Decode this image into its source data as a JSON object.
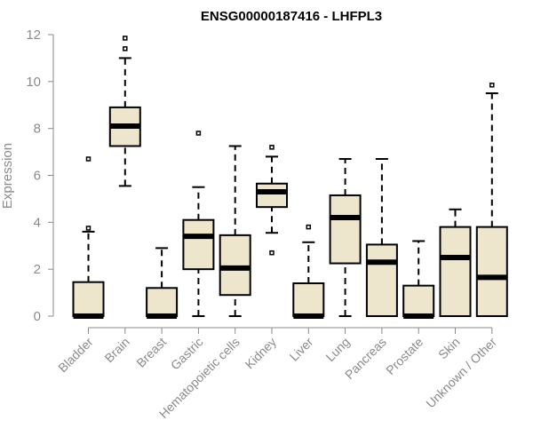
{
  "colors": {
    "box_fill": "#ede6cc",
    "box_stroke": "#000000",
    "axis": "#8a8a8a",
    "tick_text": "#8a8a8a",
    "title": "#000000"
  },
  "chart_data": {
    "type": "boxplot",
    "title": "ENSG00000187416 - LHFPL3",
    "xlabel": "",
    "ylabel": "Expression",
    "ylim": [
      0,
      12
    ],
    "yticks": [
      0,
      2,
      4,
      6,
      8,
      10,
      12
    ],
    "grid": false,
    "categories": [
      "Bladder",
      "Brain",
      "Breast",
      "Gastric",
      "Hematopoietic cells",
      "Kidney",
      "Liver",
      "Lung",
      "Pancreas",
      "Prostate",
      "Skin",
      "Unknown / Other"
    ],
    "boxes": [
      {
        "name": "Bladder",
        "whisker_low": 0,
        "q1": 0,
        "median": 0,
        "q3": 1.45,
        "whisker_high": 3.6,
        "outliers": [
          3.75,
          6.7
        ]
      },
      {
        "name": "Brain",
        "whisker_low": 5.55,
        "q1": 7.25,
        "median": 8.1,
        "q3": 8.9,
        "whisker_high": 11.0,
        "outliers": [
          11.4,
          11.85
        ]
      },
      {
        "name": "Breast",
        "whisker_low": 0,
        "q1": 0,
        "median": 0,
        "q3": 1.2,
        "whisker_high": 2.9,
        "outliers": []
      },
      {
        "name": "Gastric",
        "whisker_low": 0,
        "q1": 2.0,
        "median": 3.4,
        "q3": 4.1,
        "whisker_high": 5.5,
        "outliers": [
          7.8
        ]
      },
      {
        "name": "Hematopoietic cells",
        "whisker_low": 0,
        "q1": 0.9,
        "median": 2.05,
        "q3": 3.45,
        "whisker_high": 7.25,
        "outliers": []
      },
      {
        "name": "Kidney",
        "whisker_low": 3.55,
        "q1": 4.65,
        "median": 5.3,
        "q3": 5.65,
        "whisker_high": 6.8,
        "outliers": [
          7.2,
          2.7
        ]
      },
      {
        "name": "Liver",
        "whisker_low": 0,
        "q1": 0,
        "median": 0,
        "q3": 1.4,
        "whisker_high": 3.15,
        "outliers": [
          3.8
        ]
      },
      {
        "name": "Lung",
        "whisker_low": 0,
        "q1": 2.25,
        "median": 4.2,
        "q3": 5.15,
        "whisker_high": 6.7,
        "outliers": []
      },
      {
        "name": "Pancreas",
        "whisker_low": 0,
        "q1": 0,
        "median": 2.3,
        "q3": 3.05,
        "whisker_high": 6.7,
        "outliers": []
      },
      {
        "name": "Prostate",
        "whisker_low": 0,
        "q1": 0,
        "median": 0,
        "q3": 1.3,
        "whisker_high": 3.2,
        "outliers": []
      },
      {
        "name": "Skin",
        "whisker_low": 0,
        "q1": 0,
        "median": 2.5,
        "q3": 3.8,
        "whisker_high": 4.55,
        "outliers": []
      },
      {
        "name": "Unknown / Other",
        "whisker_low": 0,
        "q1": 0,
        "median": 1.65,
        "q3": 3.8,
        "whisker_high": 9.5,
        "outliers": [
          9.85
        ]
      }
    ]
  }
}
